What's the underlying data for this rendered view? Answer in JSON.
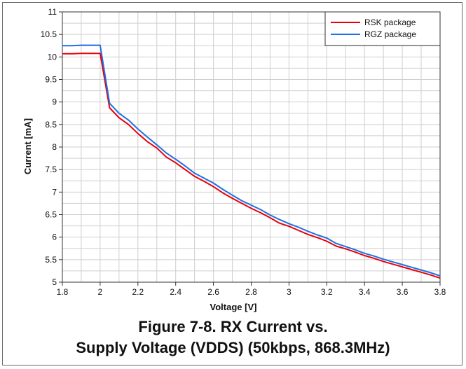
{
  "figure": {
    "caption_line1": "Figure 7-8. RX Current vs.",
    "caption_line2": "Supply Voltage (VDDS) (50kbps, 868.3MHz)"
  },
  "chart_data": {
    "type": "line",
    "xlabel": "Voltage [V]",
    "ylabel": "Current [mA]",
    "xlim": [
      1.8,
      3.8
    ],
    "ylim": [
      5,
      11
    ],
    "xticks": [
      1.8,
      2,
      2.2,
      2.4,
      2.6,
      2.8,
      3,
      3.2,
      3.4,
      3.6,
      3.8
    ],
    "xtick_labels": [
      "1.8",
      "2",
      "2.2",
      "2.4",
      "2.6",
      "2.8",
      "3",
      "3.2",
      "3.4",
      "3.6",
      "3.8"
    ],
    "yticks": [
      5,
      5.5,
      6,
      6.5,
      7,
      7.5,
      8,
      8.5,
      9,
      9.5,
      10,
      10.5,
      11
    ],
    "ytick_labels": [
      "5",
      "5.5",
      "6",
      "6.5",
      "7",
      "7.5",
      "8",
      "8.5",
      "9",
      "9.5",
      "10",
      "10.5",
      "11"
    ],
    "grid": true,
    "legend_position": "top-right",
    "series": [
      {
        "name": "RSK package",
        "color": "#e8000b",
        "x": [
          1.8,
          1.85,
          1.9,
          1.95,
          2.0,
          2.05,
          2.1,
          2.15,
          2.2,
          2.25,
          2.3,
          2.35,
          2.4,
          2.45,
          2.5,
          2.55,
          2.6,
          2.65,
          2.7,
          2.75,
          2.8,
          2.85,
          2.9,
          2.95,
          3.0,
          3.05,
          3.1,
          3.15,
          3.2,
          3.25,
          3.3,
          3.35,
          3.4,
          3.45,
          3.5,
          3.55,
          3.6,
          3.65,
          3.7,
          3.75,
          3.8
        ],
        "values": [
          10.07,
          10.07,
          10.08,
          10.08,
          10.08,
          8.87,
          8.65,
          8.5,
          8.3,
          8.12,
          7.98,
          7.78,
          7.65,
          7.5,
          7.35,
          7.24,
          7.12,
          6.98,
          6.86,
          6.75,
          6.64,
          6.54,
          6.43,
          6.31,
          6.24,
          6.15,
          6.06,
          5.99,
          5.91,
          5.8,
          5.74,
          5.67,
          5.59,
          5.53,
          5.46,
          5.4,
          5.34,
          5.28,
          5.22,
          5.16,
          5.09
        ]
      },
      {
        "name": "RGZ package",
        "color": "#1f6fe5",
        "x": [
          1.8,
          1.85,
          1.9,
          1.95,
          2.0,
          2.05,
          2.1,
          2.15,
          2.2,
          2.25,
          2.3,
          2.35,
          2.4,
          2.45,
          2.5,
          2.55,
          2.6,
          2.65,
          2.7,
          2.75,
          2.8,
          2.85,
          2.9,
          2.95,
          3.0,
          3.05,
          3.1,
          3.15,
          3.2,
          3.25,
          3.3,
          3.35,
          3.4,
          3.45,
          3.5,
          3.55,
          3.6,
          3.65,
          3.7,
          3.75,
          3.8
        ],
        "values": [
          10.25,
          10.25,
          10.26,
          10.26,
          10.26,
          8.97,
          8.75,
          8.6,
          8.4,
          8.22,
          8.05,
          7.87,
          7.73,
          7.58,
          7.42,
          7.31,
          7.2,
          7.06,
          6.93,
          6.81,
          6.71,
          6.61,
          6.49,
          6.39,
          6.3,
          6.22,
          6.13,
          6.05,
          5.98,
          5.86,
          5.79,
          5.72,
          5.64,
          5.58,
          5.51,
          5.45,
          5.39,
          5.33,
          5.27,
          5.21,
          5.14
        ]
      }
    ]
  }
}
